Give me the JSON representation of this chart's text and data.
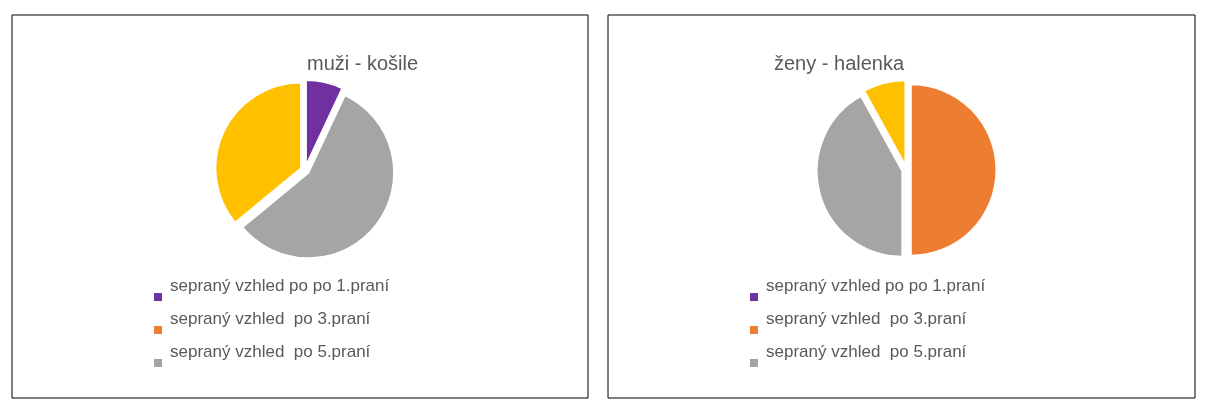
{
  "chart_data": [
    {
      "type": "pie",
      "title": "muži - košile",
      "categories": [
        "sepraný vzhled po po 1.praní",
        "sepraný vzhled  po 3.praní",
        "sepraný vzhled  po 5.praní",
        null
      ],
      "values": [
        7,
        0,
        57,
        36
      ],
      "colors": [
        "#7030a0",
        "#ed7d31",
        "#a5a5a5",
        "#ffc000"
      ],
      "legend": "bottom"
    },
    {
      "type": "pie",
      "title": "ženy - halenka",
      "categories": [
        "sepraný vzhled po po 1.praní",
        "sepraný vzhled  po 3.praní",
        "sepraný vzhled  po 5.praní",
        null
      ],
      "values": [
        0,
        50,
        42,
        8
      ],
      "colors": [
        "#7030a0",
        "#ed7d31",
        "#a5a5a5",
        "#ffc000"
      ],
      "legend": "bottom"
    }
  ]
}
